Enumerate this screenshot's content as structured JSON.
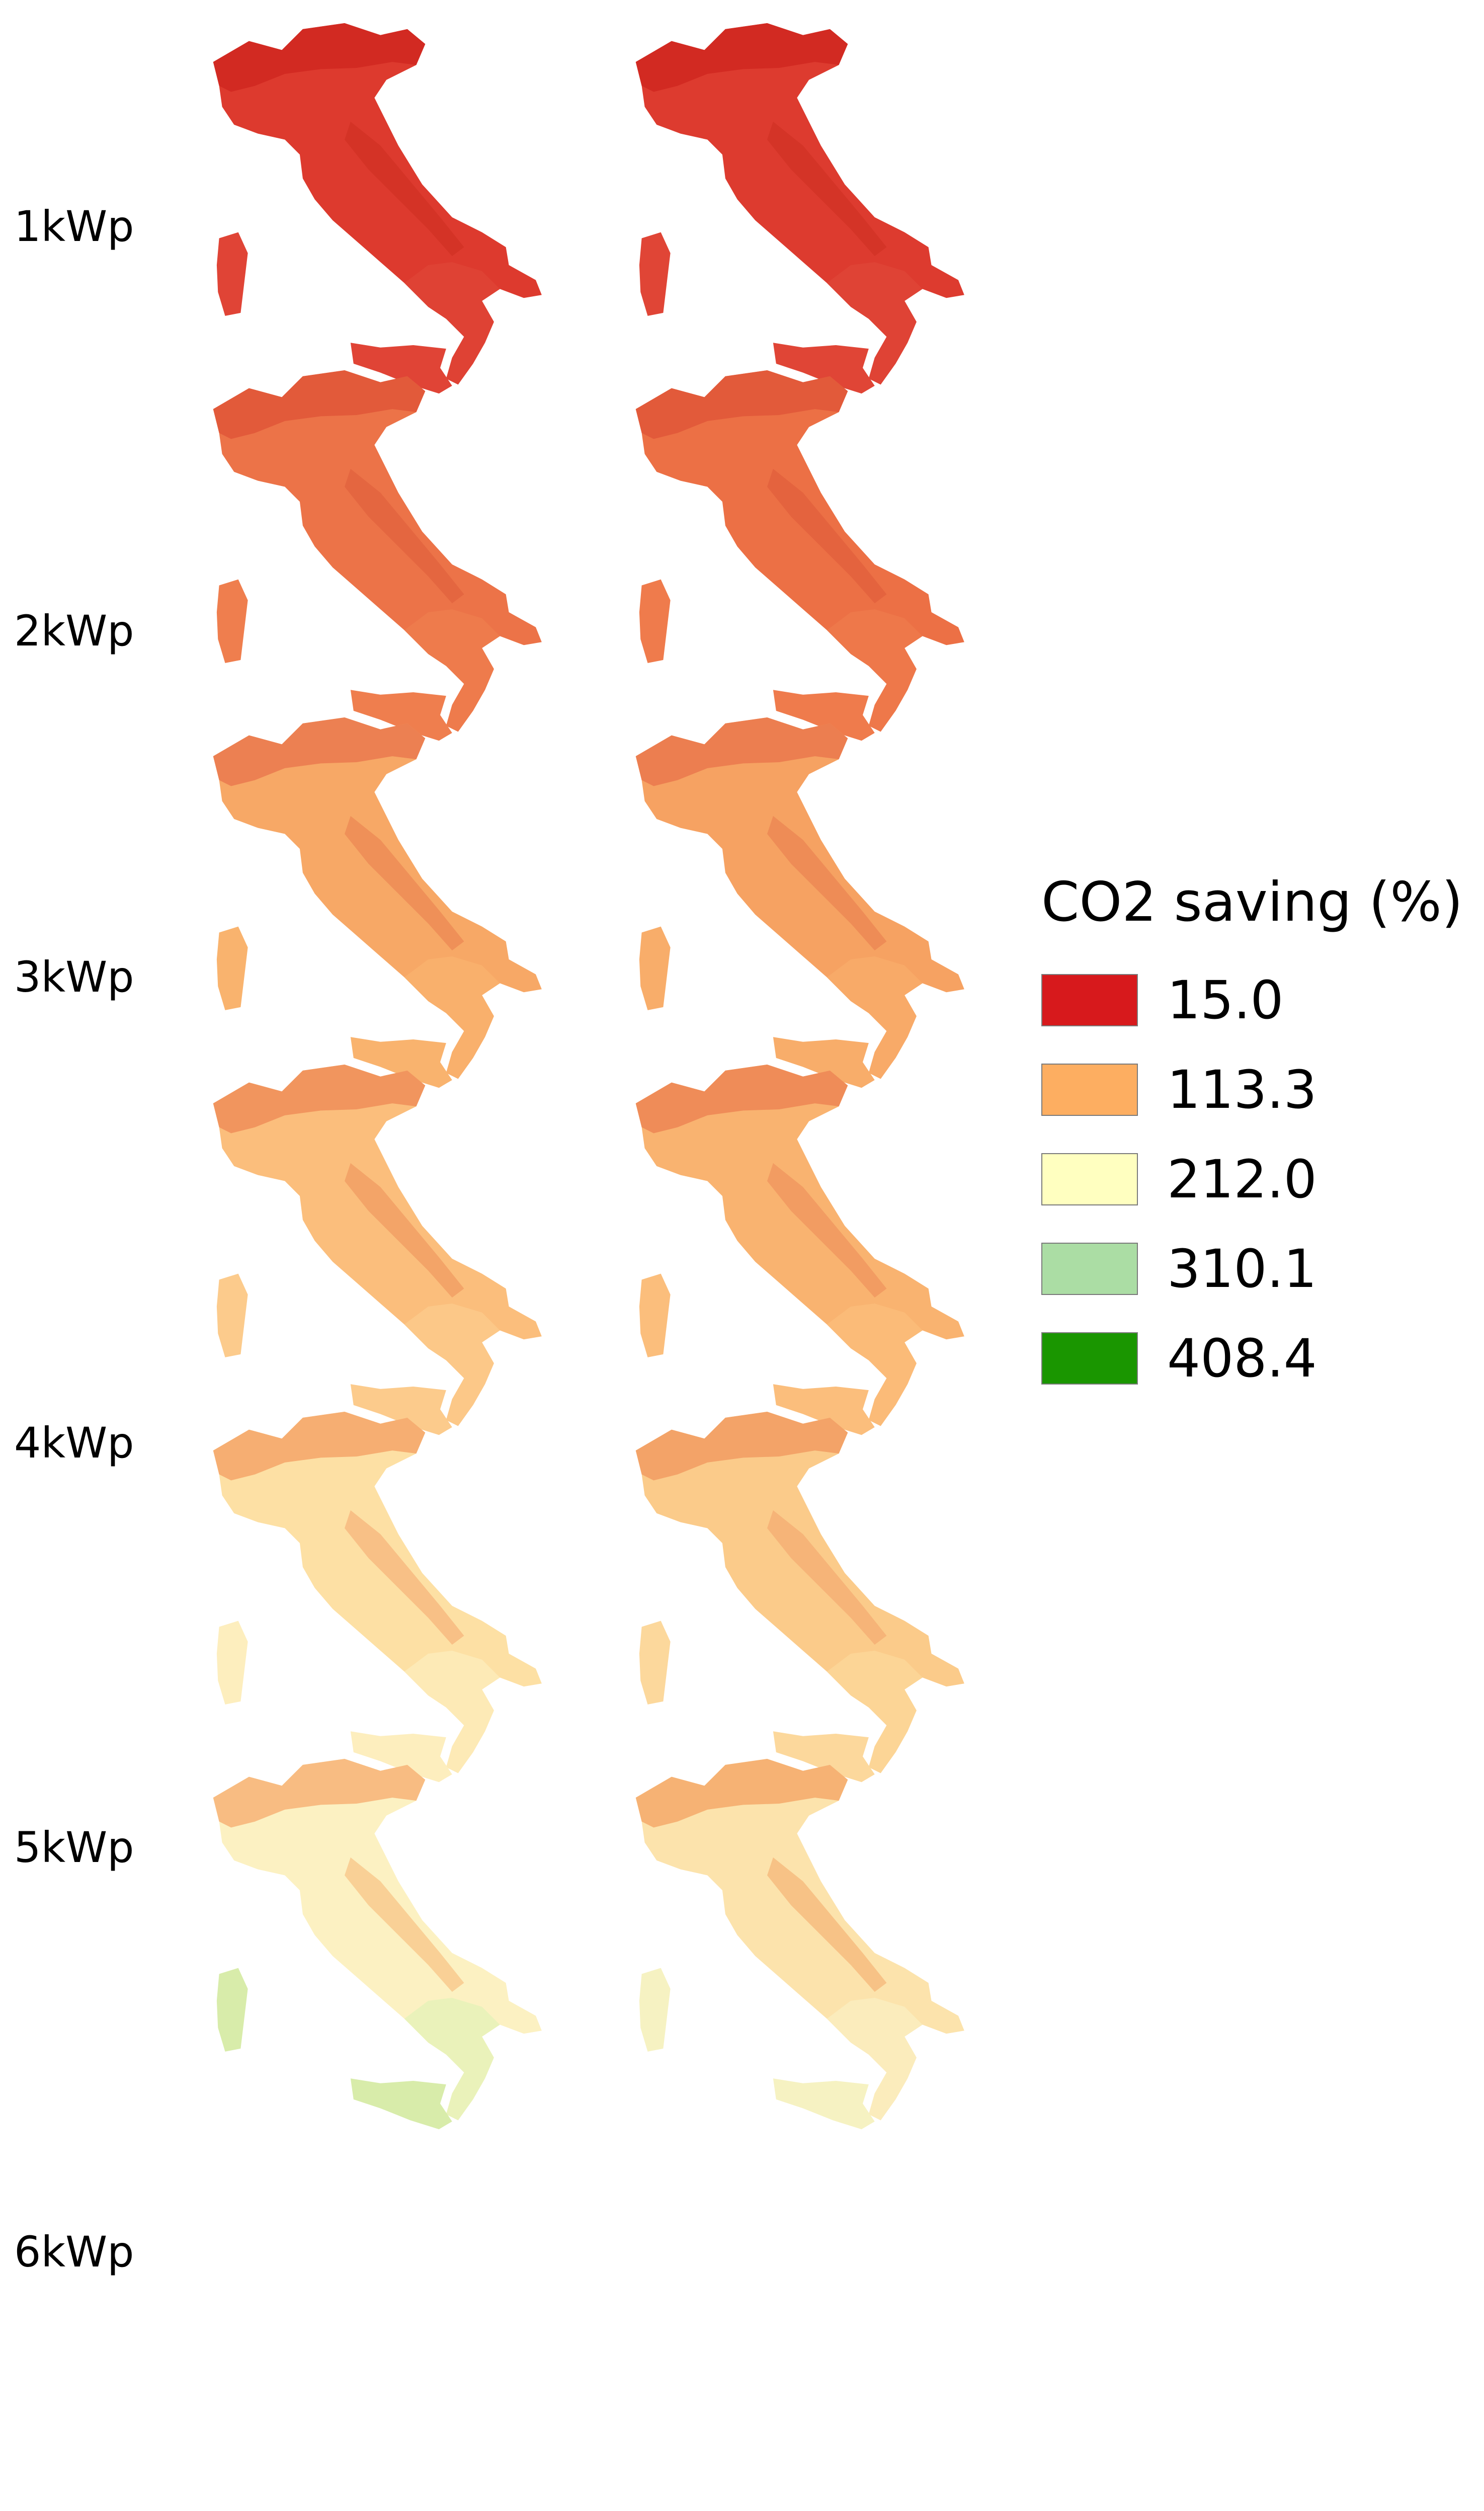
{
  "rows": [
    {
      "label": "1kWp",
      "maps": [
        {
          "main": "#dd3a2e",
          "alpine": "#d22a22",
          "south": "#df4234",
          "islands": "#e04436",
          "accent": "#d43326"
        },
        {
          "main": "#dd3b2f",
          "alpine": "#d22a22",
          "south": "#df4335",
          "islands": "#e04536",
          "accent": "#d43427"
        }
      ]
    },
    {
      "label": "2kWp",
      "maps": [
        {
          "main": "#ec7348",
          "alpine": "#e25a3a",
          "south": "#ee7b4c",
          "islands": "#ef7e4e",
          "accent": "#e46640"
        },
        {
          "main": "#ec7045",
          "alpine": "#e25a3a",
          "south": "#ee784a",
          "islands": "#ef7b4c",
          "accent": "#e4633e"
        }
      ]
    },
    {
      "label": "3kWp",
      "maps": [
        {
          "main": "#f7a866",
          "alpine": "#ec8052",
          "south": "#f9b06c",
          "islands": "#f9b36e",
          "accent": "#ef9058"
        },
        {
          "main": "#f6a262",
          "alpine": "#ec7e50",
          "south": "#f8aa68",
          "islands": "#f8ad6a",
          "accent": "#ee8c56"
        }
      ]
    },
    {
      "label": "4kWp",
      "maps": [
        {
          "main": "#fbbe7c",
          "alpine": "#f1955e",
          "south": "#fcc888",
          "islands": "#fccb8c",
          "accent": "#f3a468"
        },
        {
          "main": "#f9b370",
          "alpine": "#ef8c58",
          "south": "#fbbb78",
          "islands": "#fbbe7c",
          "accent": "#f29c62"
        }
      ]
    },
    {
      "label": "5kWp",
      "maps": [
        {
          "main": "#fde0a4",
          "alpine": "#f6ae72",
          "south": "#fdeab6",
          "islands": "#fdeebe",
          "accent": "#f8c086"
        },
        {
          "main": "#fbcb8a",
          "alpine": "#f3a368",
          "south": "#fcd596",
          "islands": "#fcd89c",
          "accent": "#f6b478"
        }
      ]
    },
    {
      "label": "6kWp",
      "maps": [
        {
          "main": "#fcf1c2",
          "alpine": "#f8bc82",
          "south": "#eaf2ba",
          "islands": "#d8ecaa",
          "accent": "#f9d096"
        },
        {
          "main": "#fce3ac",
          "alpine": "#f6b274",
          "south": "#fbecbc",
          "islands": "#f6f2c2",
          "accent": "#f7c286"
        }
      ]
    }
  ],
  "legend": {
    "title": "CO2 saving (%)",
    "items": [
      {
        "label": "15.0",
        "color": "#d7191c"
      },
      {
        "label": "113.3",
        "color": "#fdae61"
      },
      {
        "label": "212.0",
        "color": "#ffffc0"
      },
      {
        "label": "310.1",
        "color": "#abdda4"
      },
      {
        "label": "408.4",
        "color": "#1a9600"
      }
    ]
  }
}
